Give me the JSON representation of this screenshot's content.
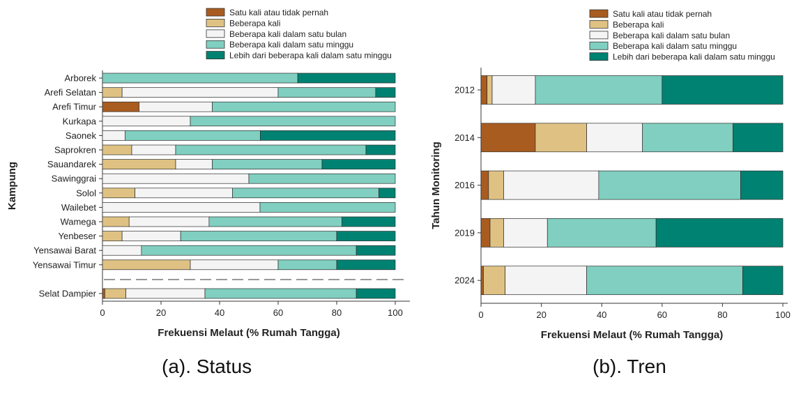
{
  "legend": {
    "entries": [
      "Satu kali atau tidak pernah",
      "Beberapa kali",
      "Beberapa kali dalam satu bulan",
      "Beberapa kali dalam satu minggu",
      "Lebih dari beberapa kali dalam satu minggu"
    ],
    "colors": [
      "#a95c1f",
      "#dfc283",
      "#f4f4f4",
      "#80cfc0",
      "#008272"
    ]
  },
  "captions": {
    "a": "(a). Status",
    "b": "(b). Tren"
  },
  "chart_data": [
    {
      "type": "bar",
      "orientation": "horizontal",
      "stacked": true,
      "xlabel": "Frekuensi Melaut (% Rumah Tangga)",
      "ylabel": "Kampung",
      "xlim": [
        0,
        100
      ],
      "xticks": [
        0,
        20,
        40,
        60,
        80,
        100
      ],
      "legend_placement": "top",
      "categories": [
        "Arborek",
        "Arefi Selatan",
        "Arefi Timur",
        "Kurkapa",
        "Saonek",
        "Saprokren",
        "Sauandarek",
        "Sawinggrai",
        "Solol",
        "Wailebet",
        "Wamega",
        "Yenbeser",
        "Yensawai Barat",
        "Yensawai Timur",
        "Selat Dampier"
      ],
      "separator_before": "Selat Dampier",
      "series": [
        {
          "name": "Satu kali atau tidak pernah",
          "values": [
            0,
            0,
            12.5,
            0,
            0,
            0,
            0,
            0,
            0,
            0,
            0,
            0,
            0,
            0,
            0.8
          ]
        },
        {
          "name": "Beberapa kali",
          "values": [
            0,
            6.7,
            0,
            0,
            0,
            10,
            25,
            0,
            11.1,
            0,
            9.1,
            6.7,
            0,
            30,
            7.2
          ]
        },
        {
          "name": "Beberapa kali dalam satu bulan",
          "values": [
            0,
            53.3,
            25,
            30,
            7.7,
            15,
            12.5,
            50,
            33.3,
            53.8,
            27.3,
            20,
            13.3,
            30,
            27
          ]
        },
        {
          "name": "Beberapa kali dalam satu minggu",
          "values": [
            66.7,
            33.3,
            62.5,
            70,
            46.2,
            65,
            37.5,
            50,
            50,
            46.2,
            45.4,
            53.3,
            73.4,
            20,
            51.7
          ]
        },
        {
          "name": "Lebih dari beberapa kali dalam satu minggu",
          "values": [
            33.3,
            6.7,
            0,
            0,
            46.1,
            10,
            25,
            0,
            5.6,
            0,
            18.2,
            20,
            13.3,
            20,
            13.3
          ]
        }
      ]
    },
    {
      "type": "bar",
      "orientation": "horizontal",
      "stacked": true,
      "xlabel": "Frekuensi Melaut (% Rumah Tangga)",
      "ylabel": "Tahun Monitoring",
      "xlim": [
        0,
        100
      ],
      "xticks": [
        0,
        20,
        40,
        60,
        80,
        100
      ],
      "legend_placement": "top",
      "categories": [
        "2012",
        "2014",
        "2016",
        "2019",
        "2024"
      ],
      "series": [
        {
          "name": "Satu kali atau tidak pernah",
          "values": [
            2,
            18,
            2.5,
            3,
            0.8
          ]
        },
        {
          "name": "Beberapa kali",
          "values": [
            1.7,
            17,
            5,
            4.5,
            7.2
          ]
        },
        {
          "name": "Beberapa kali dalam satu bulan",
          "values": [
            14.3,
            18.5,
            31.5,
            14.5,
            27
          ]
        },
        {
          "name": "Beberapa kali dalam satu minggu",
          "values": [
            42,
            30,
            47,
            36,
            51.7
          ]
        },
        {
          "name": "Lebih dari beberapa kali dalam satu minggu",
          "values": [
            40,
            16.5,
            14,
            42,
            13.3
          ]
        }
      ]
    }
  ]
}
